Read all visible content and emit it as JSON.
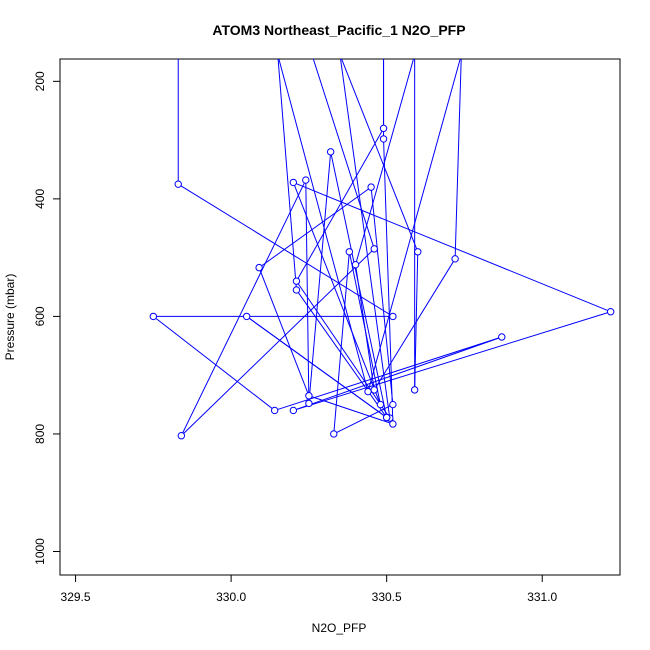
{
  "chart_data": {
    "type": "line",
    "title": "ATOM3 Northeast_Pacific_1 N2O_PFP",
    "xlabel": "N2O_PFP",
    "ylabel": "Pressure (mbar)",
    "xlim": [
      329.45,
      331.25
    ],
    "ylim": [
      1040,
      162
    ],
    "y_reversed": true,
    "x_ticks": [
      329.5,
      330.0,
      330.5,
      331.0
    ],
    "x_tick_labels": [
      "329.5",
      "330.0",
      "330.5",
      "331.0"
    ],
    "y_ticks": [
      200,
      400,
      600,
      800,
      1000
    ],
    "y_tick_labels": [
      "200",
      "400",
      "600",
      "800",
      "1000"
    ],
    "grid": false,
    "legend": "none",
    "series_color": "#0000ff",
    "marker": "open-circle",
    "series": [
      {
        "values": [
          {
            "x": 329.83,
            "y": 155
          },
          {
            "x": 329.83,
            "y": 375
          },
          {
            "x": 330.52,
            "y": 600
          },
          {
            "x": 329.75,
            "y": 600
          },
          {
            "x": 330.14,
            "y": 760
          },
          {
            "x": 330.87,
            "y": 635
          },
          {
            "x": 330.2,
            "y": 760
          },
          {
            "x": 331.22,
            "y": 592
          },
          {
            "x": 330.2,
            "y": 372
          },
          {
            "x": 330.48,
            "y": 750
          },
          {
            "x": 330.38,
            "y": 490
          },
          {
            "x": 330.33,
            "y": 800
          },
          {
            "x": 330.52,
            "y": 750
          },
          {
            "x": 330.45,
            "y": 380
          },
          {
            "x": 330.09,
            "y": 517
          },
          {
            "x": 330.25,
            "y": 735
          },
          {
            "x": 330.52,
            "y": 783
          },
          {
            "x": 330.49,
            "y": 298
          },
          {
            "x": 330.49,
            "y": 155
          },
          {
            "x": 330.49,
            "y": 280
          },
          {
            "x": 330.21,
            "y": 540
          },
          {
            "x": 330.51,
            "y": 773
          },
          {
            "x": 330.35,
            "y": 155
          },
          {
            "x": 330.6,
            "y": 490
          },
          {
            "x": 330.59,
            "y": 725
          },
          {
            "x": 330.59,
            "y": 155
          },
          {
            "x": 330.4,
            "y": 512
          },
          {
            "x": 330.46,
            "y": 725
          },
          {
            "x": 330.72,
            "y": 502
          },
          {
            "x": 330.74,
            "y": 155
          },
          {
            "x": 330.44,
            "y": 728
          },
          {
            "x": 330.15,
            "y": 155
          },
          {
            "x": 330.21,
            "y": 555
          },
          {
            "x": 330.5,
            "y": 772
          },
          {
            "x": 330.05,
            "y": 600
          },
          {
            "x": 330.5,
            "y": 772
          },
          {
            "x": 330.32,
            "y": 320
          },
          {
            "x": 330.25,
            "y": 748
          },
          {
            "x": 330.24,
            "y": 368
          },
          {
            "x": 329.84,
            "y": 803
          },
          {
            "x": 330.46,
            "y": 485
          },
          {
            "x": 330.26,
            "y": 155
          }
        ]
      }
    ]
  }
}
